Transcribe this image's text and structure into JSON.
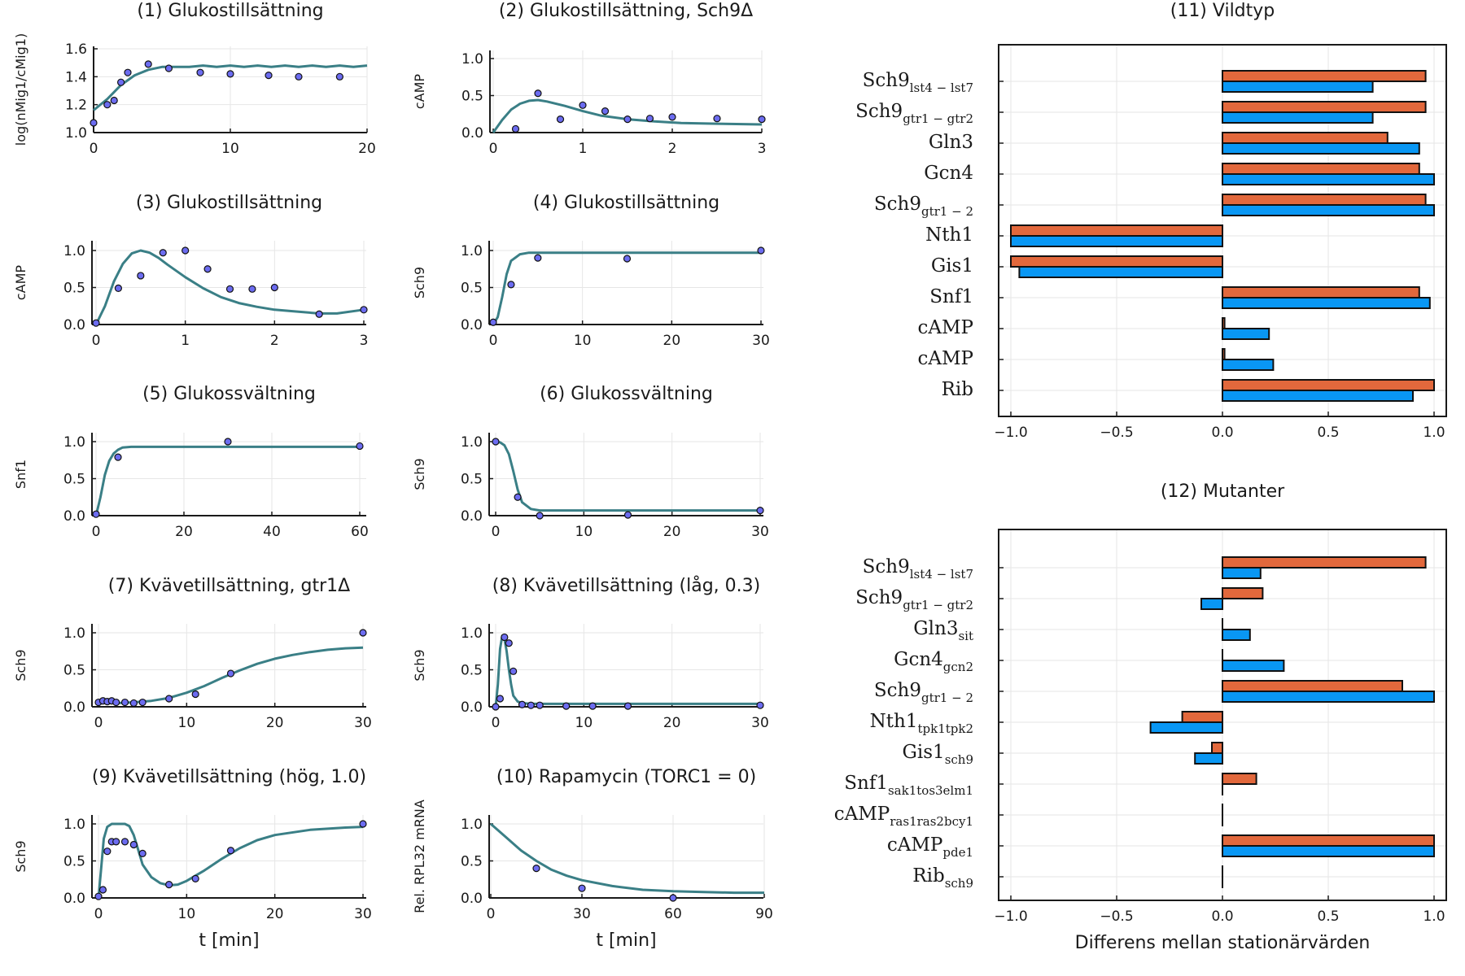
{
  "colors": {
    "curve": "#3a7f86",
    "point_fill": "#6c6cf0",
    "point_stroke": "#111111",
    "series_orange": "#e2683c",
    "series_blue": "#0997f4"
  },
  "chart_data": [
    {
      "type": "line",
      "title": "(1) Glukostillsättning",
      "xlabel": "",
      "ylabel": "log(nMig1/cMig1)",
      "xlim": [
        0,
        20
      ],
      "ylim": [
        1.0,
        1.6
      ],
      "xticks": [
        0,
        10,
        20
      ],
      "yticks": [
        1.0,
        1.2,
        1.4,
        1.6
      ],
      "xtick_labels": [
        "0",
        "10",
        "20"
      ],
      "ytick_labels": [
        "1.0",
        "1.2",
        "1.4",
        "1.6"
      ],
      "points": {
        "x": [
          0,
          1,
          1.5,
          2,
          2.5,
          4,
          5.5,
          7.8,
          10,
          12.8,
          15,
          18
        ],
        "y": [
          1.07,
          1.2,
          1.23,
          1.36,
          1.43,
          1.49,
          1.46,
          1.43,
          1.42,
          1.41,
          1.4,
          1.4
        ]
      },
      "curve": {
        "x": [
          0,
          1,
          2,
          3,
          4,
          5,
          6,
          7,
          8,
          9,
          10,
          11,
          12,
          13,
          14,
          15,
          16,
          17,
          18,
          19,
          20
        ],
        "y": [
          1.16,
          1.24,
          1.34,
          1.41,
          1.45,
          1.47,
          1.47,
          1.47,
          1.48,
          1.47,
          1.48,
          1.47,
          1.48,
          1.47,
          1.48,
          1.47,
          1.48,
          1.47,
          1.48,
          1.47,
          1.48
        ]
      }
    },
    {
      "type": "line",
      "title": "(2) Glukostillsättning, Sch9Δ",
      "xlabel": "",
      "ylabel": "cAMP",
      "xlim": [
        0,
        3
      ],
      "ylim": [
        0,
        1.0
      ],
      "xticks": [
        0,
        1,
        2,
        3
      ],
      "yticks": [
        0,
        0.5,
        1.0
      ],
      "xtick_labels": [
        "0",
        "1",
        "2",
        "3"
      ],
      "ytick_labels": [
        "0.0",
        "0.5",
        "1.0"
      ],
      "points": {
        "x": [
          0.25,
          0.5,
          0.75,
          1.0,
          1.25,
          1.5,
          1.75,
          2.0,
          2.5,
          3.0
        ],
        "y": [
          0.05,
          0.53,
          0.18,
          0.37,
          0.29,
          0.18,
          0.19,
          0.21,
          0.19,
          0.18
        ]
      },
      "curve": {
        "x": [
          0,
          0.1,
          0.2,
          0.3,
          0.4,
          0.5,
          0.6,
          0.8,
          1.0,
          1.2,
          1.5,
          1.8,
          2.1,
          2.5,
          3.0
        ],
        "y": [
          0,
          0.17,
          0.31,
          0.39,
          0.43,
          0.44,
          0.42,
          0.36,
          0.29,
          0.23,
          0.18,
          0.15,
          0.13,
          0.12,
          0.11
        ]
      }
    },
    {
      "type": "line",
      "title": "(3) Glukostillsättning",
      "xlabel": "",
      "ylabel": "cAMP",
      "xlim": [
        0,
        3
      ],
      "ylim": [
        0,
        1.0
      ],
      "xticks": [
        0,
        1,
        2,
        3
      ],
      "yticks": [
        0,
        0.5,
        1.0
      ],
      "xtick_labels": [
        "0",
        "1",
        "2",
        "3"
      ],
      "ytick_labels": [
        "0.0",
        "0.5",
        "1.0"
      ],
      "points": {
        "x": [
          0,
          0.25,
          0.5,
          0.75,
          1.0,
          1.25,
          1.5,
          1.75,
          2.0,
          2.5,
          3.0
        ],
        "y": [
          0.02,
          0.49,
          0.66,
          0.97,
          1.0,
          0.75,
          0.48,
          0.48,
          0.5,
          0.14,
          0.2
        ]
      },
      "curve": {
        "x": [
          0,
          0.1,
          0.2,
          0.3,
          0.4,
          0.5,
          0.6,
          0.7,
          0.8,
          1.0,
          1.2,
          1.4,
          1.6,
          1.8,
          2.0,
          2.2,
          2.5,
          2.7,
          3.0
        ],
        "y": [
          0,
          0.25,
          0.58,
          0.82,
          0.96,
          1.0,
          0.97,
          0.9,
          0.81,
          0.64,
          0.49,
          0.37,
          0.29,
          0.24,
          0.2,
          0.18,
          0.15,
          0.15,
          0.2
        ]
      }
    },
    {
      "type": "line",
      "title": "(4) Glukostillsättning",
      "xlabel": "",
      "ylabel": "Sch9",
      "xlim": [
        0,
        30
      ],
      "ylim": [
        0,
        1.0
      ],
      "xticks": [
        0,
        10,
        20,
        30
      ],
      "yticks": [
        0,
        0.5,
        1.0
      ],
      "xtick_labels": [
        "0",
        "10",
        "20",
        "30"
      ],
      "ytick_labels": [
        "0.0",
        "0.5",
        "1.0"
      ],
      "points": {
        "x": [
          0,
          2,
          5,
          15,
          30
        ],
        "y": [
          0.03,
          0.54,
          0.9,
          0.89,
          1.0
        ]
      },
      "curve": {
        "x": [
          0,
          0.5,
          1,
          1.5,
          2,
          3,
          4,
          5,
          10,
          20,
          30
        ],
        "y": [
          0,
          0.1,
          0.37,
          0.68,
          0.86,
          0.95,
          0.97,
          0.97,
          0.97,
          0.97,
          0.97
        ]
      }
    },
    {
      "type": "line",
      "title": "(5) Glukossvältning",
      "xlabel": "",
      "ylabel": "Snf1",
      "xlim": [
        0,
        60
      ],
      "ylim": [
        0,
        1.0
      ],
      "xticks": [
        0,
        20,
        40,
        60
      ],
      "yticks": [
        0,
        0.5,
        1.0
      ],
      "xtick_labels": [
        "0",
        "20",
        "40",
        "60"
      ],
      "ytick_labels": [
        "0.0",
        "0.5",
        "1.0"
      ],
      "points": {
        "x": [
          0,
          5,
          30,
          60
        ],
        "y": [
          0.02,
          0.79,
          1.0,
          0.94
        ]
      },
      "curve": {
        "x": [
          0,
          1,
          2,
          3,
          4,
          5,
          6,
          8,
          10,
          20,
          40,
          60
        ],
        "y": [
          0,
          0.25,
          0.55,
          0.74,
          0.84,
          0.89,
          0.92,
          0.93,
          0.93,
          0.93,
          0.93,
          0.93
        ]
      }
    },
    {
      "type": "line",
      "title": "(6) Glukossvältning",
      "xlabel": "",
      "ylabel": "Sch9",
      "xlim": [
        0,
        30
      ],
      "ylim": [
        0,
        1.0
      ],
      "xticks": [
        0,
        10,
        20,
        30
      ],
      "yticks": [
        0,
        0.5,
        1.0
      ],
      "xtick_labels": [
        "0",
        "10",
        "20",
        "30"
      ],
      "ytick_labels": [
        "0.0",
        "0.5",
        "1.0"
      ],
      "points": {
        "x": [
          0,
          2.5,
          5,
          15,
          30
        ],
        "y": [
          1.0,
          0.25,
          0.0,
          0.01,
          0.07
        ]
      },
      "curve": {
        "x": [
          0,
          0.5,
          1,
          1.5,
          2,
          2.5,
          3,
          4,
          5,
          7,
          10,
          20,
          30
        ],
        "y": [
          1.0,
          0.99,
          0.95,
          0.83,
          0.6,
          0.35,
          0.18,
          0.09,
          0.07,
          0.07,
          0.07,
          0.07,
          0.07
        ]
      }
    },
    {
      "type": "line",
      "title": "(7) Kvävetillsättning, gtr1Δ",
      "xlabel": "",
      "ylabel": "Sch9",
      "xlim": [
        0,
        30
      ],
      "ylim": [
        0,
        1.0
      ],
      "xticks": [
        0,
        10,
        20,
        30
      ],
      "yticks": [
        0,
        0.5,
        1.0
      ],
      "xtick_labels": [
        "0",
        "10",
        "20",
        "30"
      ],
      "ytick_labels": [
        "0.0",
        "0.5",
        "1.0"
      ],
      "points": {
        "x": [
          0,
          0.5,
          1,
          1.5,
          2,
          3,
          4,
          5,
          8,
          11,
          15,
          30
        ],
        "y": [
          0.06,
          0.08,
          0.07,
          0.08,
          0.06,
          0.06,
          0.05,
          0.06,
          0.11,
          0.17,
          0.45,
          1.0
        ]
      },
      "curve": {
        "x": [
          0,
          2,
          4,
          6,
          8,
          10,
          12,
          14,
          16,
          18,
          20,
          22,
          24,
          26,
          28,
          30
        ],
        "y": [
          0.05,
          0.05,
          0.06,
          0.08,
          0.12,
          0.19,
          0.28,
          0.39,
          0.49,
          0.58,
          0.65,
          0.7,
          0.74,
          0.77,
          0.79,
          0.8
        ]
      }
    },
    {
      "type": "line",
      "title": "(8) Kvävetillsättning (låg, 0.3)",
      "xlabel": "",
      "ylabel": "Sch9",
      "xlim": [
        0,
        30
      ],
      "ylim": [
        0,
        1.0
      ],
      "xticks": [
        0,
        10,
        20,
        30
      ],
      "yticks": [
        0,
        0.5,
        1.0
      ],
      "xtick_labels": [
        "0",
        "10",
        "20",
        "30"
      ],
      "ytick_labels": [
        "0.0",
        "0.5",
        "1.0"
      ],
      "points": {
        "x": [
          0,
          0.5,
          1,
          1.5,
          2,
          3,
          4,
          5,
          8,
          11,
          15,
          30
        ],
        "y": [
          0.0,
          0.11,
          0.94,
          0.86,
          0.48,
          0.03,
          0.02,
          0.02,
          0.01,
          0.01,
          0.01,
          0.02
        ]
      },
      "curve": {
        "x": [
          0,
          0.25,
          0.5,
          0.75,
          1,
          1.25,
          1.5,
          1.75,
          2,
          2.5,
          3,
          4,
          5,
          10,
          20,
          30
        ],
        "y": [
          0,
          0.3,
          0.78,
          0.96,
          0.92,
          0.75,
          0.5,
          0.3,
          0.15,
          0.07,
          0.05,
          0.04,
          0.04,
          0.04,
          0.04,
          0.04
        ]
      }
    },
    {
      "type": "line",
      "title": "(9) Kvävetillsättning (hög, 1.0)",
      "xlabel": "t [min]",
      "ylabel": "Sch9",
      "xlim": [
        0,
        30
      ],
      "ylim": [
        0,
        1.0
      ],
      "xticks": [
        0,
        10,
        20,
        30
      ],
      "yticks": [
        0,
        0.5,
        1.0
      ],
      "xtick_labels": [
        "0",
        "10",
        "20",
        "30"
      ],
      "ytick_labels": [
        "0.0",
        "0.5",
        "1.0"
      ],
      "points": {
        "x": [
          0,
          0.5,
          1,
          1.5,
          2,
          3,
          4,
          5,
          8,
          11,
          15,
          30
        ],
        "y": [
          0.02,
          0.11,
          0.63,
          0.76,
          0.76,
          0.76,
          0.72,
          0.6,
          0.18,
          0.26,
          0.64,
          1.0
        ]
      },
      "curve": {
        "x": [
          0,
          0.3,
          0.6,
          1,
          1.5,
          2,
          2.5,
          3,
          3.5,
          4,
          4.5,
          5,
          6,
          7,
          8,
          9,
          10,
          12,
          14,
          16,
          18,
          20,
          24,
          28,
          30
        ],
        "y": [
          0,
          0.4,
          0.8,
          0.96,
          1.0,
          1.0,
          1.0,
          1.0,
          0.97,
          0.85,
          0.65,
          0.45,
          0.28,
          0.2,
          0.17,
          0.18,
          0.23,
          0.37,
          0.53,
          0.67,
          0.78,
          0.85,
          0.92,
          0.95,
          0.96
        ]
      }
    },
    {
      "type": "line",
      "title": "(10) Rapamycin (TORC1 = 0)",
      "xlabel": "t [min]",
      "ylabel": "Rel. RPL32 mRNA",
      "xlim": [
        0,
        90
      ],
      "ylim": [
        0,
        1.0
      ],
      "xticks": [
        0,
        30,
        60,
        90
      ],
      "yticks": [
        0,
        0.5,
        1.0
      ],
      "xtick_labels": [
        "0",
        "30",
        "60",
        "90"
      ],
      "ytick_labels": [
        "0.0",
        "0.5",
        "1.0"
      ],
      "points": {
        "x": [
          15,
          30,
          60
        ],
        "y": [
          0.4,
          0.13,
          0.0
        ]
      },
      "curve": {
        "x": [
          0,
          5,
          10,
          15,
          20,
          25,
          30,
          40,
          50,
          60,
          70,
          80,
          90
        ],
        "y": [
          1.0,
          0.82,
          0.64,
          0.5,
          0.38,
          0.3,
          0.24,
          0.16,
          0.11,
          0.09,
          0.08,
          0.07,
          0.07
        ]
      }
    },
    {
      "type": "bar",
      "orientation": "horizontal",
      "title": "(11) Vildtyp",
      "xlabel": "",
      "ylabel": "",
      "xlim": [
        -1.0,
        1.0
      ],
      "xticks": [
        -1.0,
        -0.5,
        0,
        0.5,
        1.0
      ],
      "xtick_labels": [
        "−1.0",
        "−0.5",
        "0.0",
        "0.5",
        "1.0"
      ],
      "categories": [
        {
          "main": "Sch9",
          "sub": "lst4 − lst7"
        },
        {
          "main": "Sch9",
          "sub": "gtr1 − gtr2"
        },
        {
          "main": "Gln3",
          "sub": ""
        },
        {
          "main": "Gcn4",
          "sub": ""
        },
        {
          "main": "Sch9",
          "sub": "gtr1 − 2"
        },
        {
          "main": "Nth1",
          "sub": ""
        },
        {
          "main": "Gis1",
          "sub": ""
        },
        {
          "main": "Snf1",
          "sub": ""
        },
        {
          "main": "cAMP",
          "sub": ""
        },
        {
          "main": "cAMP",
          "sub": ""
        },
        {
          "main": "Rib",
          "sub": ""
        }
      ],
      "series": [
        {
          "color": "#e2683c",
          "values": [
            0.96,
            0.96,
            0.78,
            0.93,
            0.96,
            -1.0,
            -1.0,
            0.93,
            0.01,
            0.01,
            1.0
          ]
        },
        {
          "color": "#0997f4",
          "values": [
            0.71,
            0.71,
            0.93,
            1.0,
            1.0,
            -1.0,
            -0.96,
            0.98,
            0.22,
            0.24,
            0.9
          ]
        }
      ]
    },
    {
      "type": "bar",
      "orientation": "horizontal",
      "title": "(12) Mutanter",
      "xlabel": "Differens mellan stationärvärden",
      "ylabel": "",
      "xlim": [
        -1.0,
        1.0
      ],
      "xticks": [
        -1.0,
        -0.5,
        0,
        0.5,
        1.0
      ],
      "xtick_labels": [
        "−1.0",
        "−0.5",
        "0.0",
        "0.5",
        "1.0"
      ],
      "categories": [
        {
          "main": "Sch9",
          "sub": "lst4 − lst7"
        },
        {
          "main": "Sch9",
          "sub": "gtr1 − gtr2"
        },
        {
          "main": "Gln3",
          "sub": "sit"
        },
        {
          "main": "Gcn4",
          "sub": "gcn2"
        },
        {
          "main": "Sch9",
          "sub": "gtr1 − 2"
        },
        {
          "main": "Nth1",
          "sub": "tpk1tpk2"
        },
        {
          "main": "Gis1",
          "sub": "sch9"
        },
        {
          "main": "Snf1",
          "sub": "sak1tos3elm1"
        },
        {
          "main": "cAMP",
          "sub": "ras1ras2bcy1"
        },
        {
          "main": "cAMP",
          "sub": "pde1"
        },
        {
          "main": "Rib",
          "sub": "sch9"
        }
      ],
      "series": [
        {
          "color": "#e2683c",
          "values": [
            0.96,
            0.19,
            0.0,
            0.0,
            0.85,
            -0.19,
            -0.05,
            0.16,
            0.0,
            1.0,
            0.0
          ]
        },
        {
          "color": "#0997f4",
          "values": [
            0.18,
            -0.1,
            0.13,
            0.29,
            1.0,
            -0.34,
            -0.13,
            0.0,
            0.0,
            1.0,
            0.0
          ]
        }
      ]
    }
  ]
}
